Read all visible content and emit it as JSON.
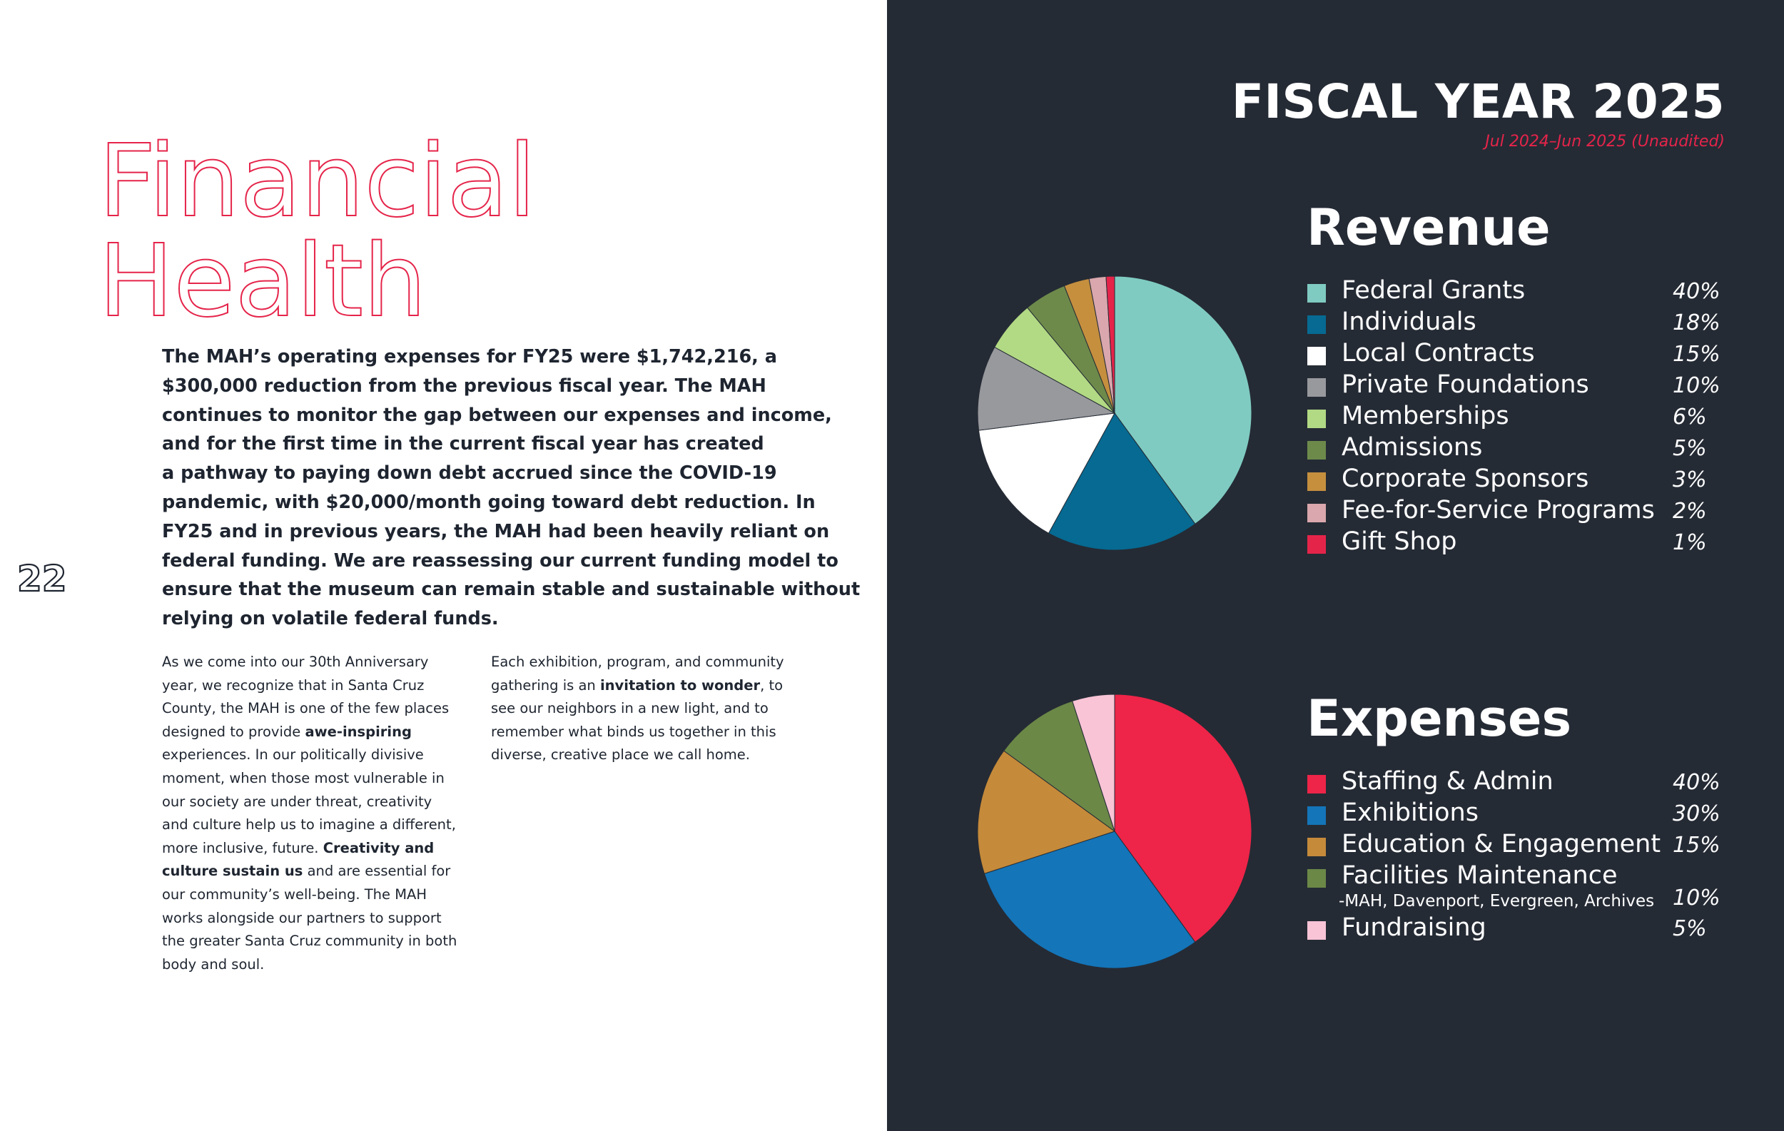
{
  "page": {
    "title_line1": "Financial",
    "title_line2": "Health",
    "page_number": "22",
    "title_color": "#e5244a",
    "text_color": "#1e2530",
    "lead_lines": [
      "The MAH’s operating expenses for FY25 were $1,742,216, a",
      "$300,000 reduction from the previous fiscal year. The MAH",
      "continues to monitor the  gap between our expenses and income,",
      "and for the first time in the current fiscal year has created",
      "a pathway to paying down debt accrued since the COVID-19",
      "pandemic, with $20,000/month going toward debt reduction. In",
      "FY25 and in previous years, the MAH had been heavily reliant on",
      "federal funding. We are reassessing our current funding model to",
      "ensure that the museum can remain stable and sustainable without",
      "relying on volatile federal funds."
    ],
    "col1_lines": [
      "As we come into our 30th Anniversary",
      "year, we recognize that in Santa Cruz",
      "County, the MAH is one of the few places",
      {
        "pre": "designed to provide ",
        "bold": "awe-inspiring",
        "post": ""
      },
      "experiences. In our politically divisive",
      "moment, when those most vulnerable in",
      "our society are under threat, creativity",
      "and culture help us to imagine a different,",
      {
        "pre": "more inclusive, future. ",
        "bold": "Creativity and",
        "post": ""
      },
      {
        "pre": "",
        "bold": "culture sustain us",
        "post": " and are essential for"
      },
      "our community’s well-being. The MAH",
      "works alongside our partners to support",
      "the greater Santa Cruz community in both",
      "body and soul."
    ],
    "col2_lines": [
      "Each exhibition, program, and community",
      {
        "pre": "gathering is an ",
        "bold": "invitation to wonder",
        "post": ", to"
      },
      "see our neighbors in a new light, and to",
      "remember what binds us together in this",
      "diverse, creative place we call home."
    ]
  },
  "fiscal": {
    "title": "FISCAL YEAR 2025",
    "subtitle": "Jul 2024–Jun 2025 (Unaudited)",
    "panel_color": "#252b35",
    "accent_color": "#e5244a"
  },
  "chart_data": [
    {
      "type": "pie",
      "title": "Revenue",
      "categories": [
        "Federal Grants",
        "Individuals",
        "Local Contracts",
        "Private Foundations",
        "Memberships",
        "Admissions",
        "Corporate Sponsors",
        "Fee-for-Service Programs",
        "Gift Shop"
      ],
      "values": [
        40,
        18,
        15,
        10,
        6,
        5,
        3,
        2,
        1
      ],
      "labels": [
        "40%",
        "18%",
        "15%",
        "10%",
        "6%",
        "5%",
        "3%",
        "2%",
        "1%"
      ],
      "colors": [
        "#7fcbc2",
        "#066a92",
        "#ffffff",
        "#98999d",
        "#b2d984",
        "#6d8a4b",
        "#c58f3e",
        "#d9a7ad",
        "#e5244a"
      ],
      "legend_position": "right"
    },
    {
      "type": "pie",
      "title": "Expenses",
      "categories": [
        "Staffing & Admin",
        "Exhibitions",
        "Education & Engagement",
        "Facilities Maintenance",
        "Fundraising"
      ],
      "sublabels": [
        "",
        "",
        "",
        "-MAH, Davenport, Evergreen, Archives",
        ""
      ],
      "values": [
        40,
        30,
        15,
        10,
        5
      ],
      "labels": [
        "40%",
        "30%",
        "15%",
        "10%",
        "5%"
      ],
      "colors": [
        "#ee2448",
        "#1475b9",
        "#c58a3a",
        "#6b8847",
        "#f8c4d6"
      ],
      "legend_position": "right"
    }
  ]
}
